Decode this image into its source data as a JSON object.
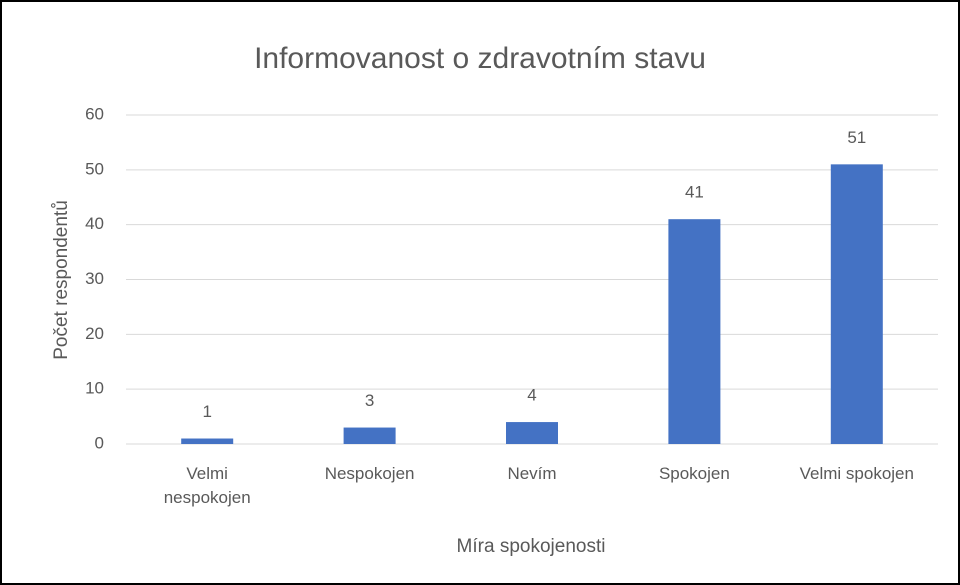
{
  "chart_data": {
    "type": "bar",
    "title": "Informovanost o zdravotním stavu",
    "x_label": "Míra spokojenosti",
    "y_label": "Počet respondentů",
    "categories": [
      "Velmi nespokojen",
      "Nespokojen",
      "Nevím",
      "Spokojen",
      "Velmi spokojen"
    ],
    "values": [
      1,
      3,
      4,
      41,
      51
    ],
    "color": "#4472c4",
    "ylim": [
      0,
      60
    ],
    "yticks": [
      0,
      10,
      20,
      30,
      40,
      50,
      60
    ],
    "grid": true,
    "data_labels": true
  }
}
